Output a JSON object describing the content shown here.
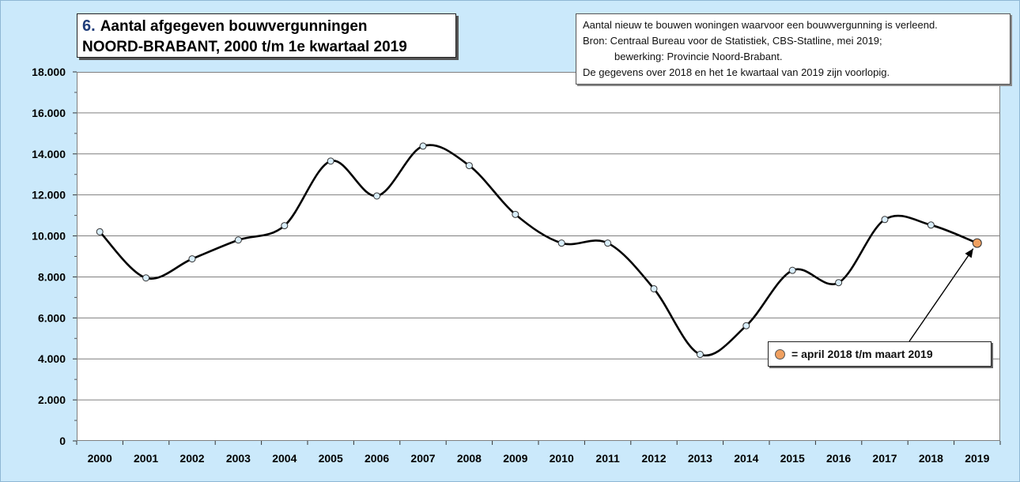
{
  "title": {
    "number": "6.",
    "line1": "Aantal afgegeven bouwvergunningen",
    "line2": "NOORD-BRABANT, 2000 t/m 1e kwartaal 2019"
  },
  "info": {
    "line1": "Aantal nieuw te bouwen woningen waarvoor een bouwvergunning is verleend.",
    "line2": "Bron: Centraal Bureau voor de Statistiek, CBS-Statline, mei 2019;",
    "line3": "bewerking: Provincie Noord-Brabant.",
    "line4": "De gegevens over 2018 en het 1e kwartaal van 2019 zijn voorlopig."
  },
  "legend": {
    "label": "= april 2018 t/m maart 2019",
    "color": "#f0a060"
  },
  "colors": {
    "background": "#cbe9fb",
    "line": "#000000",
    "marker": "#d9eefc",
    "highlight_marker": "#f0a060"
  },
  "chart_data": {
    "type": "line",
    "title": "Aantal afgegeven bouwvergunningen NOORD-BRABANT, 2000 t/m 1e kwartaal 2019",
    "xlabel": "",
    "ylabel": "",
    "categories": [
      "2000",
      "2001",
      "2002",
      "2003",
      "2004",
      "2005",
      "2006",
      "2007",
      "2008",
      "2009",
      "2010",
      "2011",
      "2012",
      "2013",
      "2014",
      "2015",
      "2016",
      "2017",
      "2018",
      "2019"
    ],
    "series": [
      {
        "values": [
          10200,
          7950,
          8880,
          9800,
          10500,
          13650,
          11950,
          14380,
          13430,
          11050,
          9650,
          9650,
          7420,
          4220,
          5620,
          8320,
          7720,
          10800,
          10530,
          9650
        ]
      }
    ],
    "highlight_index": 19,
    "ylim": [
      0,
      18000
    ],
    "yticks": [
      "0",
      "2.000",
      "4.000",
      "6.000",
      "8.000",
      "10.000",
      "12.000",
      "14.000",
      "16.000",
      "18.000"
    ],
    "ytick_values": [
      0,
      2000,
      4000,
      6000,
      8000,
      10000,
      12000,
      14000,
      16000,
      18000
    ],
    "grid": true,
    "smooth": true,
    "legend_position": "bottom-right"
  }
}
